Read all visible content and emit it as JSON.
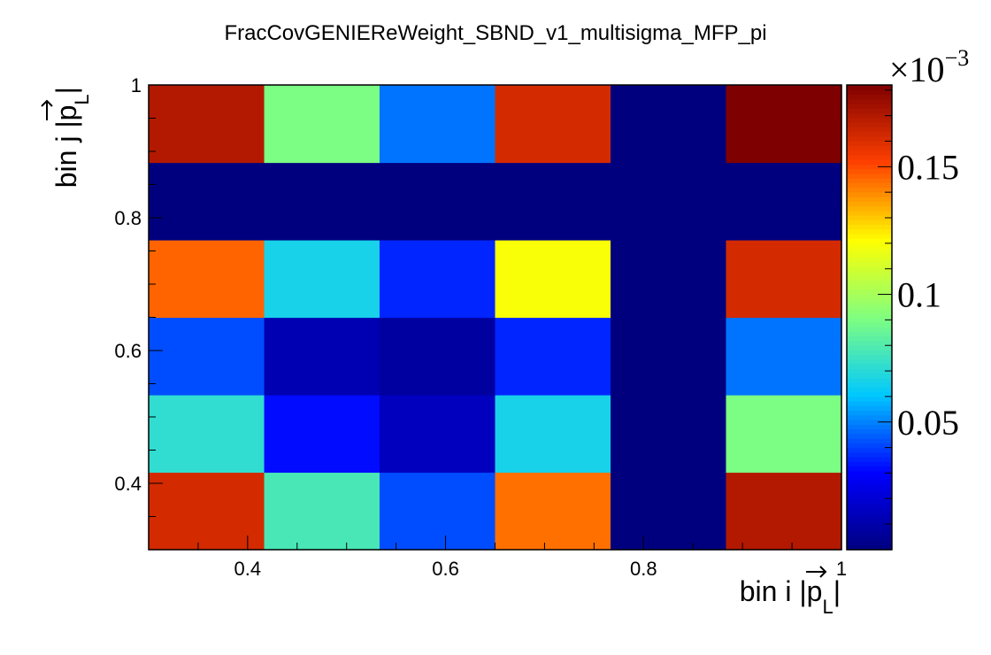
{
  "chart_data": {
    "type": "heatmap",
    "title": "FracCovGENIEReWeight_SBND_v1_multisigma_MFP_pi",
    "xlabel": "bin i |p_L|",
    "ylabel": "bin j |p_L|",
    "xlabel_parts": {
      "prefix": "bin i |",
      "var": "p",
      "sub": "L",
      "suffix": "|"
    },
    "ylabel_parts": {
      "prefix": "bin j |",
      "var": "p",
      "sub": "L",
      "suffix": "|"
    },
    "xlim": [
      0.3,
      1.0
    ],
    "ylim": [
      0.3,
      1.0
    ],
    "x_ticks": [
      0.4,
      0.6,
      0.8,
      1
    ],
    "x_tick_labels": [
      "0.4",
      "0.6",
      "0.8",
      "1"
    ],
    "y_ticks": [
      0.4,
      0.6,
      0.8,
      1
    ],
    "y_tick_labels": [
      "0.4",
      "0.6",
      "0.8",
      "1"
    ],
    "x_edges": [
      0.3,
      0.4167,
      0.5333,
      0.65,
      0.7667,
      0.8833,
      1.0
    ],
    "y_edges": [
      0.3,
      0.4167,
      0.5333,
      0.65,
      0.7667,
      0.8833,
      1.0
    ],
    "z": [
      [
        0.000162,
        7.8e-05,
        4.2e-05,
        0.000144,
        0.0,
        0.00017
      ],
      [
        7.2e-05,
        3.2e-05,
        1.5e-05,
        6.6e-05,
        0.0,
        9e-05
      ],
      [
        4.2e-05,
        1.2e-05,
        8e-06,
        3.6e-05,
        0.0,
        4.8e-05
      ],
      [
        0.000146,
        6.6e-05,
        3.6e-05,
        0.00012,
        0.0,
        0.000162
      ],
      [
        0.0,
        0.0,
        0.0,
        0.0,
        0.0,
        0.0
      ],
      [
        0.00017,
        9e-05,
        4.8e-05,
        0.000162,
        0.0,
        0.000182
      ]
    ],
    "zlim": [
      0.0,
      0.000182
    ],
    "colorbar_ticks": [
      0.05,
      0.1,
      0.15
    ],
    "colorbar_tick_labels": [
      "0.05",
      "0.1",
      "0.15"
    ],
    "colorbar_exponent": "×10",
    "colorbar_exponent_power": "−3",
    "colorbar_scale": 0.001,
    "grid": false,
    "colormap_stops": [
      "#00007f",
      "#0000ff",
      "#00c8ff",
      "#80ff80",
      "#ffff00",
      "#ff4000",
      "#7f0000"
    ]
  }
}
